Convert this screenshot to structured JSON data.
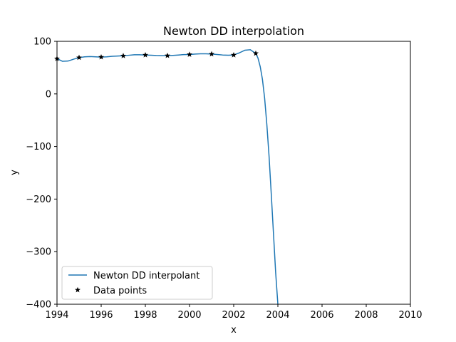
{
  "chart_data": {
    "type": "line",
    "title": "Newton DD interpolation",
    "xlabel": "x",
    "ylabel": "y",
    "xlim": [
      1994,
      2010
    ],
    "ylim": [
      -400,
      100
    ],
    "xticks": [
      1994,
      1996,
      1998,
      2000,
      2002,
      2004,
      2006,
      2008,
      2010
    ],
    "yticks": [
      100,
      0,
      -100,
      -200,
      -300,
      -400
    ],
    "yticks_display": [
      "100",
      "0",
      "−100",
      "−200",
      "−300",
      "−400"
    ],
    "grid": false,
    "legend_position": "lower-left",
    "series": [
      {
        "name": "Newton DD interpolant",
        "kind": "line",
        "color": "#1f77b4",
        "x": [
          1994.0,
          1994.25,
          1994.5,
          1994.75,
          1995.0,
          1995.25,
          1995.5,
          1995.75,
          1996.0,
          1996.25,
          1996.5,
          1996.75,
          1997.0,
          1997.25,
          1997.5,
          1997.75,
          1998.0,
          1998.25,
          1998.5,
          1998.75,
          1999.0,
          1999.25,
          1999.5,
          1999.75,
          2000.0,
          2000.25,
          2000.5,
          2000.75,
          2001.0,
          2001.25,
          2001.5,
          2001.75,
          2002.0,
          2002.25,
          2002.5,
          2002.75,
          2003.0,
          2003.1,
          2003.2,
          2003.3,
          2003.4,
          2003.5,
          2003.6,
          2003.7,
          2003.8,
          2003.9,
          2004.0
        ],
        "y": [
          67.0,
          62.0,
          62.5,
          66.0,
          69.0,
          70.5,
          71.0,
          70.5,
          70.0,
          70.5,
          71.5,
          72.0,
          72.5,
          73.5,
          74.5,
          74.5,
          74.0,
          73.5,
          73.0,
          72.8,
          72.8,
          73.3,
          74.0,
          74.8,
          75.0,
          75.8,
          76.2,
          76.2,
          75.8,
          75.0,
          74.0,
          73.5,
          74.0,
          78.0,
          83.0,
          84.0,
          77.0,
          68.0,
          52.0,
          28.0,
          -8.0,
          -58.0,
          -118.0,
          -190.0,
          -265.0,
          -340.0,
          -400.0
        ]
      },
      {
        "name": "Data points",
        "kind": "markers",
        "marker": "star",
        "color": "#000000",
        "x": [
          1994,
          1995,
          1996,
          1997,
          1998,
          1999,
          2000,
          2001,
          2002,
          2003
        ],
        "y": [
          67.0,
          69.0,
          70.0,
          72.5,
          74.0,
          72.8,
          75.0,
          75.8,
          74.0,
          77.0
        ]
      }
    ]
  }
}
